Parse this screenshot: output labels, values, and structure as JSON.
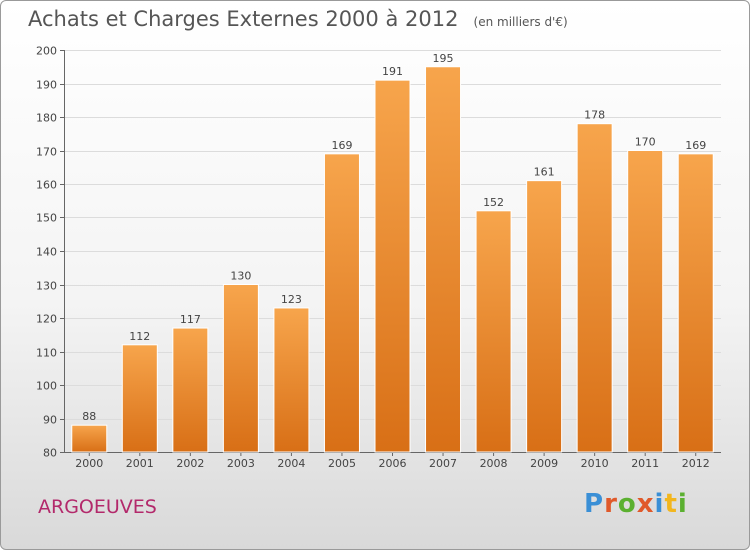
{
  "header": {
    "title": "Achats et Charges Externes 2000 à 2012",
    "subtitle": "(en milliers d'€)"
  },
  "footer": {
    "commune": "ARGOEUVES",
    "logo_text": "Proxiti",
    "logo_colors": [
      "#3a8fd6",
      "#e0592a",
      "#5bb030",
      "#e0592a",
      "#3a8fd6",
      "#f2b61e",
      "#5bb030"
    ]
  },
  "chart_data": {
    "type": "bar",
    "categories": [
      "2000",
      "2001",
      "2002",
      "2003",
      "2004",
      "2005",
      "2006",
      "2007",
      "2008",
      "2009",
      "2010",
      "2011",
      "2012"
    ],
    "values": [
      88,
      112,
      117,
      130,
      123,
      169,
      191,
      195,
      152,
      161,
      178,
      170,
      169
    ],
    "ylim": [
      80,
      200
    ],
    "yticks": [
      80,
      90,
      100,
      110,
      120,
      130,
      140,
      150,
      160,
      170,
      180,
      190,
      200
    ],
    "grid": true,
    "bar_color_top": "#f7a54c",
    "bar_color_bottom": "#d86f16"
  }
}
